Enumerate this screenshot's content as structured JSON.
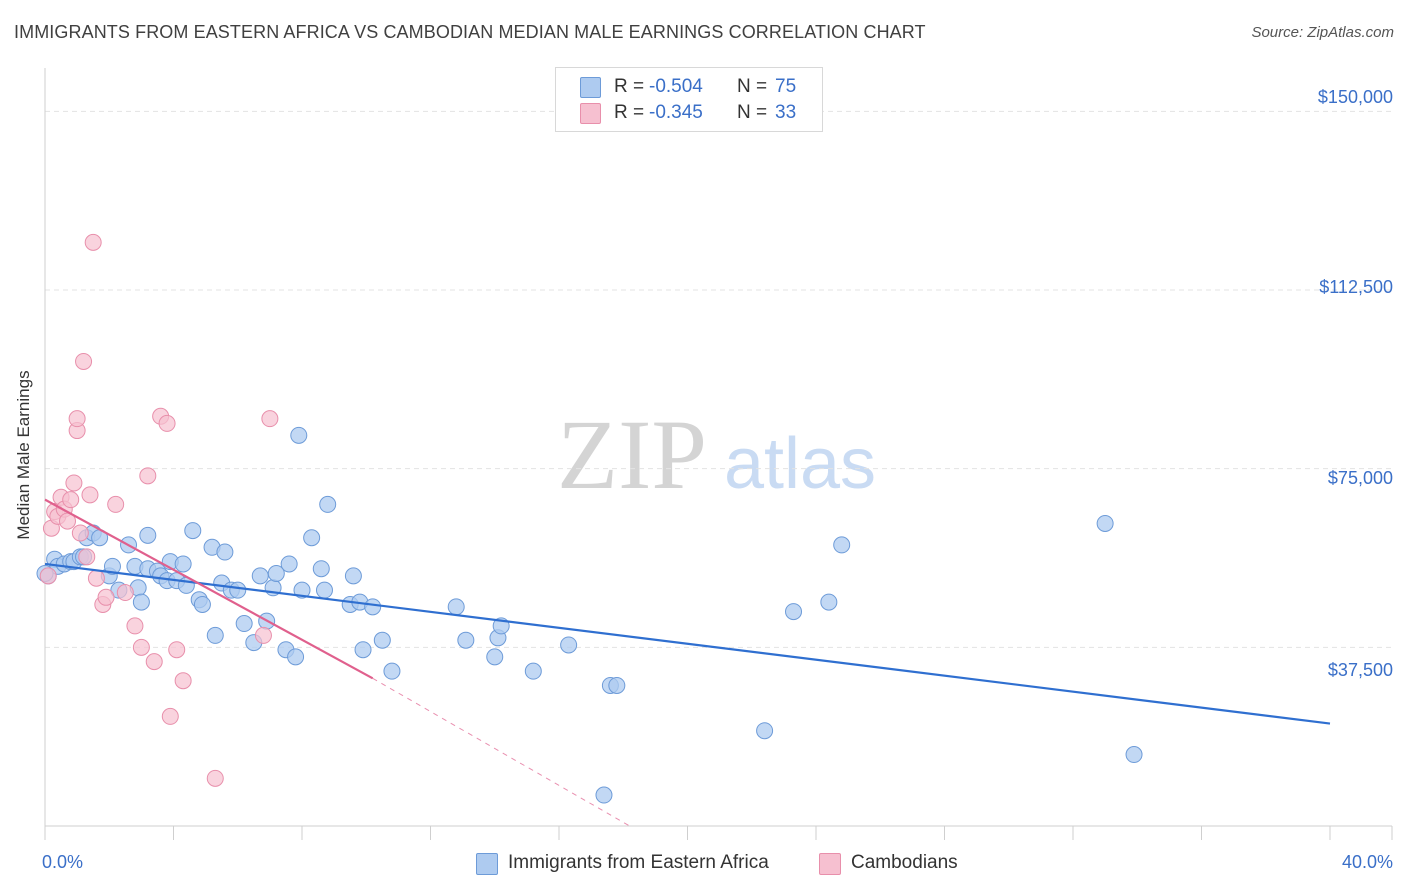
{
  "header": {
    "title": "IMMIGRANTS FROM EASTERN AFRICA VS CAMBODIAN MEDIAN MALE EARNINGS CORRELATION CHART",
    "source": "Source: ZipAtlas.com"
  },
  "watermark": {
    "zip": "ZIP",
    "atlas": "atlas"
  },
  "legend_stats": {
    "series1": {
      "r_label": "R =",
      "r_value": "-0.504",
      "n_label": "N =",
      "n_value": "75"
    },
    "series2": {
      "r_label": "R =",
      "r_value": "-0.345",
      "n_label": "N =",
      "n_value": "33"
    }
  },
  "colors": {
    "blue_fill": "#aecbf0",
    "blue_stroke": "#6d9bd8",
    "blue_line": "#2f6fd0",
    "pink_fill": "#f6c0d0",
    "pink_stroke": "#e88fab",
    "pink_line": "#e0608d",
    "accent_text": "#3a6fc8",
    "grid": "#e3e3e3"
  },
  "chart_data": {
    "type": "scatter",
    "title": "IMMIGRANTS FROM EASTERN AFRICA VS CAMBODIAN MEDIAN MALE EARNINGS CORRELATION CHART",
    "xlabel": "",
    "ylabel": "Median Male Earnings",
    "xlim": [
      0,
      40
    ],
    "ylim": [
      0,
      157000
    ],
    "x_tick_labels": [
      "0.0%",
      "40.0%"
    ],
    "y_ticks": [
      {
        "value": 37500,
        "label": "$37,500"
      },
      {
        "value": 75000,
        "label": "$75,000"
      },
      {
        "value": 112500,
        "label": "$112,500"
      },
      {
        "value": 150000,
        "label": "$150,000"
      }
    ],
    "series": [
      {
        "name": "Immigrants from Eastern Africa",
        "color": "#aecbf0",
        "trend": {
          "x0": 0,
          "y0": 55000,
          "x1": 40,
          "y1": 21500
        },
        "points": [
          [
            0.1,
            52500
          ],
          [
            0.3,
            56000
          ],
          [
            0.4,
            54500
          ],
          [
            0.6,
            55000
          ],
          [
            0.8,
            55500
          ],
          [
            0.9,
            55500
          ],
          [
            1.1,
            56500
          ],
          [
            1.3,
            60500
          ],
          [
            1.5,
            61500
          ],
          [
            1.7,
            60500
          ],
          [
            2.0,
            52500
          ],
          [
            2.1,
            54500
          ],
          [
            2.3,
            49500
          ],
          [
            2.6,
            59000
          ],
          [
            2.8,
            54500
          ],
          [
            2.9,
            50000
          ],
          [
            3.0,
            47000
          ],
          [
            3.2,
            54000
          ],
          [
            3.2,
            61000
          ],
          [
            3.5,
            53500
          ],
          [
            3.6,
            52500
          ],
          [
            3.8,
            51500
          ],
          [
            3.9,
            55500
          ],
          [
            4.1,
            51500
          ],
          [
            4.3,
            55000
          ],
          [
            4.4,
            50500
          ],
          [
            4.6,
            62000
          ],
          [
            4.8,
            47500
          ],
          [
            4.9,
            46500
          ],
          [
            5.2,
            58500
          ],
          [
            5.3,
            40000
          ],
          [
            5.5,
            51000
          ],
          [
            5.6,
            57500
          ],
          [
            5.8,
            49500
          ],
          [
            6.0,
            49500
          ],
          [
            6.2,
            42500
          ],
          [
            6.5,
            38500
          ],
          [
            6.7,
            52500
          ],
          [
            6.9,
            43000
          ],
          [
            7.1,
            50000
          ],
          [
            7.2,
            53000
          ],
          [
            7.5,
            37000
          ],
          [
            7.6,
            55000
          ],
          [
            7.8,
            35500
          ],
          [
            7.9,
            82000
          ],
          [
            8.0,
            49500
          ],
          [
            8.3,
            60500
          ],
          [
            8.6,
            54000
          ],
          [
            8.7,
            49500
          ],
          [
            8.8,
            67500
          ],
          [
            9.5,
            46500
          ],
          [
            9.6,
            52500
          ],
          [
            9.8,
            47000
          ],
          [
            9.9,
            37000
          ],
          [
            10.2,
            46000
          ],
          [
            10.5,
            39000
          ],
          [
            10.8,
            32500
          ],
          [
            12.8,
            46000
          ],
          [
            13.1,
            39000
          ],
          [
            14.0,
            35500
          ],
          [
            14.1,
            39500
          ],
          [
            14.2,
            42000
          ],
          [
            15.2,
            32500
          ],
          [
            16.3,
            38000
          ],
          [
            17.6,
            29500
          ],
          [
            17.8,
            29500
          ],
          [
            17.4,
            6500
          ],
          [
            22.4,
            20000
          ],
          [
            23.3,
            45000
          ],
          [
            24.4,
            47000
          ],
          [
            24.8,
            59000
          ],
          [
            33.0,
            63500
          ],
          [
            33.9,
            15000
          ],
          [
            0.0,
            53000
          ],
          [
            1.2,
            56500
          ]
        ]
      },
      {
        "name": "Cambodians",
        "color": "#f6c0d0",
        "trend": {
          "x0": 0,
          "y0": 68500,
          "x1": 10.2,
          "y1": 31000
        },
        "trend_dashed": {
          "x0": 10.2,
          "y0": 31000,
          "x1": 18.2,
          "y1": 0
        },
        "points": [
          [
            0.1,
            52500
          ],
          [
            0.2,
            62500
          ],
          [
            0.3,
            66000
          ],
          [
            0.4,
            65000
          ],
          [
            0.5,
            69000
          ],
          [
            0.6,
            66500
          ],
          [
            0.7,
            64000
          ],
          [
            0.8,
            68500
          ],
          [
            0.9,
            72000
          ],
          [
            1.0,
            83000
          ],
          [
            1.0,
            85500
          ],
          [
            1.1,
            61500
          ],
          [
            1.2,
            97500
          ],
          [
            1.3,
            56500
          ],
          [
            1.4,
            69500
          ],
          [
            1.5,
            122500
          ],
          [
            1.6,
            52000
          ],
          [
            1.8,
            46500
          ],
          [
            1.9,
            48000
          ],
          [
            2.2,
            67500
          ],
          [
            2.5,
            49000
          ],
          [
            2.8,
            42000
          ],
          [
            3.0,
            37500
          ],
          [
            3.2,
            73500
          ],
          [
            3.4,
            34500
          ],
          [
            3.6,
            86000
          ],
          [
            3.8,
            84500
          ],
          [
            3.9,
            23000
          ],
          [
            4.1,
            37000
          ],
          [
            4.3,
            30500
          ],
          [
            5.3,
            10000
          ],
          [
            6.8,
            40000
          ],
          [
            7.0,
            85500
          ]
        ]
      }
    ]
  },
  "bottom_legend": {
    "item1": "Immigrants from Eastern Africa",
    "item2": "Cambodians"
  }
}
